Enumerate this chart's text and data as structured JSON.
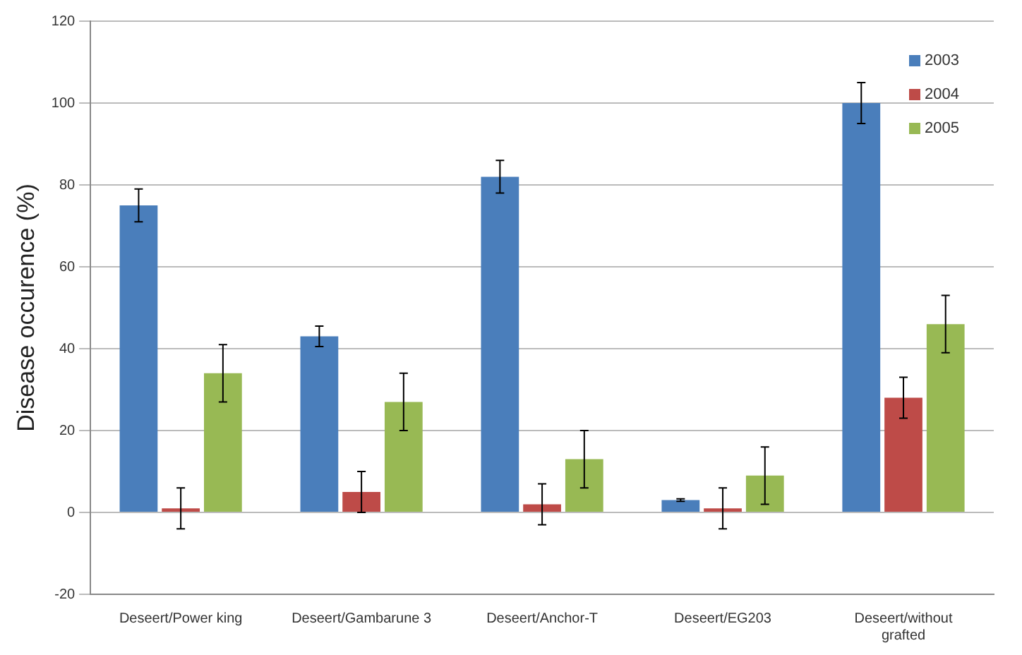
{
  "chart_data": {
    "type": "bar",
    "ylabel": "Disease occurence (%)",
    "categories": [
      "Deseert/Power king",
      "Deseert/Gambarune 3",
      "Deseert/Anchor-T",
      "Deseert/EG203",
      "Deseert/without grafted"
    ],
    "series": [
      {
        "name": "2003",
        "color": "#4a7ebb",
        "values": [
          75,
          43,
          82,
          3,
          100
        ],
        "errors": [
          4,
          2.5,
          4,
          0.3,
          5
        ]
      },
      {
        "name": "2004",
        "color": "#be4b48",
        "values": [
          1,
          5,
          2,
          1,
          28
        ],
        "errors": [
          5,
          5,
          5,
          5,
          5
        ]
      },
      {
        "name": "2005",
        "color": "#98b954",
        "values": [
          34,
          27,
          13,
          9,
          46
        ],
        "errors": [
          7,
          7,
          7,
          7,
          7
        ]
      }
    ],
    "ylim": [
      -20,
      120
    ],
    "yticks": [
      -20,
      0,
      20,
      40,
      60,
      80,
      100,
      120
    ],
    "grid": "y",
    "legend": "top right"
  }
}
